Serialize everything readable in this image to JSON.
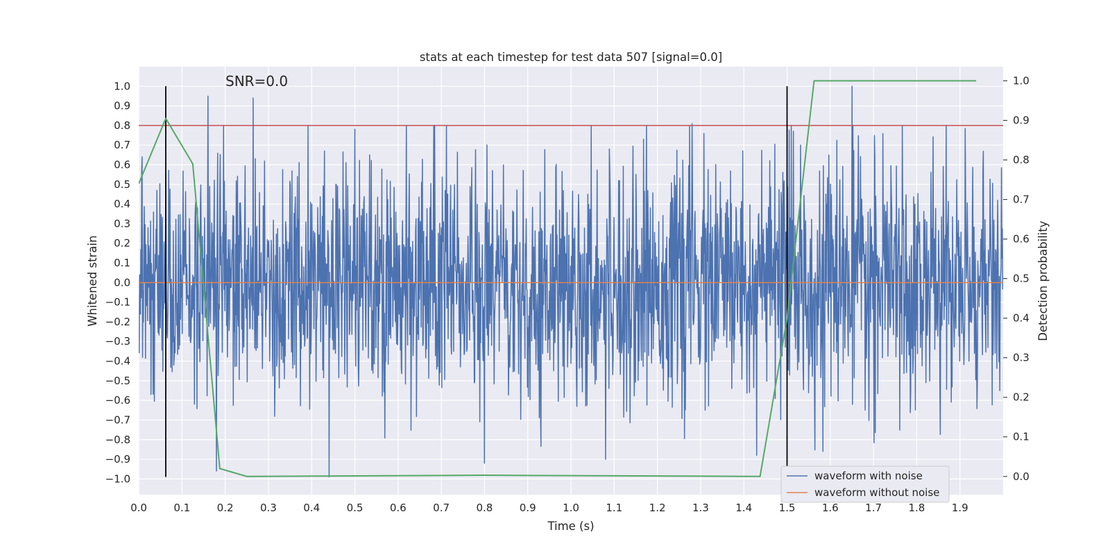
{
  "chart_data": {
    "type": "line",
    "title": "stats at each timestep for test data 507 [signal=0.0]",
    "xlabel": "Time (s)",
    "ylabel_left": "Whitened strain",
    "ylabel_right": "Detection probability",
    "xlim": [
      0.0,
      2.0
    ],
    "ylim_left": [
      -1.08,
      1.1
    ],
    "ylim_right": [
      -0.046,
      1.036
    ],
    "x_ticks": [
      "0.0",
      "0.1",
      "0.2",
      "0.3",
      "0.4",
      "0.5",
      "0.6",
      "0.7",
      "0.8",
      "0.9",
      "1.0",
      "1.1",
      "1.2",
      "1.3",
      "1.4",
      "1.5",
      "1.6",
      "1.7",
      "1.8",
      "1.9"
    ],
    "y_ticks_left": [
      "1.0",
      "0.9",
      "0.8",
      "0.7",
      "0.6",
      "0.5",
      "0.4",
      "0.3",
      "0.2",
      "0.1",
      "0.0",
      "−0.1",
      "−0.2",
      "−0.3",
      "−0.4",
      "−0.5",
      "−0.6",
      "−0.7",
      "−0.8",
      "−0.9",
      "−1.0"
    ],
    "y_ticks_right": [
      "1.0",
      "0.9",
      "0.8",
      "0.7",
      "0.6",
      "0.5",
      "0.4",
      "0.3",
      "0.2",
      "0.1",
      "0.0"
    ],
    "grid": true,
    "legend_position": "bottom-right",
    "annotation": "SNR=0.0",
    "colors": {
      "background": "#eaeaf2",
      "grid": "#ffffff",
      "noise": "#4c72b0",
      "clean": "#dd8452",
      "probability": "#55a868",
      "threshold": "#c44e52",
      "markers": "#000000"
    },
    "series": [
      {
        "name": "waveform with noise",
        "axis": "left",
        "noise_sigma": 0.3,
        "sample_count": 2048,
        "x_range": [
          0.0,
          2.0
        ]
      },
      {
        "name": "waveform without noise",
        "axis": "left",
        "x": [
          0.0,
          2.0
        ],
        "y": [
          0.0,
          0.0
        ]
      },
      {
        "axis": "right",
        "x": [
          0.0,
          0.0625,
          0.125,
          0.1875,
          0.25,
          0.8,
          1.4375,
          1.5,
          1.5625,
          1.9375
        ],
        "y": [
          0.74,
          0.905,
          0.79,
          0.02,
          0.0,
          0.003,
          0.0,
          0.4,
          1.0,
          1.0
        ]
      }
    ],
    "threshold_left": 0.8,
    "vertical_markers_x": [
      0.0625,
      1.5
    ],
    "vertical_markers_ylim": [
      -0.99,
      1.0
    ],
    "noise_peaks": [
      {
        "x": 0.16,
        "y": 0.95
      },
      {
        "x": 0.265,
        "y": 0.94
      },
      {
        "x": 1.28,
        "y": 0.81
      },
      {
        "x": 1.65,
        "y": 1.0
      },
      {
        "x": 0.44,
        "y": -0.99
      },
      {
        "x": 0.18,
        "y": -0.96
      },
      {
        "x": 0.8,
        "y": -0.92
      },
      {
        "x": 1.08,
        "y": -0.9
      },
      {
        "x": 1.43,
        "y": -0.88
      }
    ]
  }
}
